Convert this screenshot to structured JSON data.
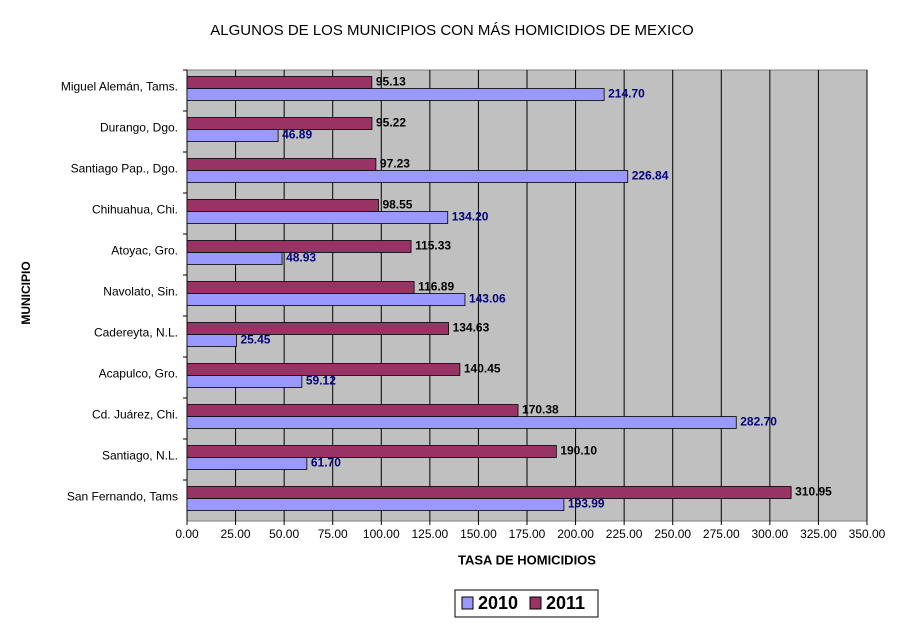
{
  "chart_data": {
    "type": "hbar",
    "title": "ALGUNOS DE LOS MUNICIPIOS CON MÁS HOMICIDIOS DE MEXICO",
    "x_label": "TASA DE HOMICIDIOS",
    "y_label": "MUNICIPIO",
    "categories": [
      "Miguel Alemán, Tams.",
      "Durango, Dgo.",
      "Santiago Pap., Dgo.",
      "Chihuahua, Chi.",
      "Atoyac, Gro.",
      "Navolato, Sin.",
      "Cadereyta, N.L.",
      "Acapulco, Gro.",
      "Cd. Juárez, Chi.",
      "Santiago, N.L.",
      "San Fernando, Tams"
    ],
    "series": [
      {
        "name": "2011",
        "color": "#993366",
        "label_color": "#000000",
        "values": [
          95.13,
          95.22,
          97.23,
          98.55,
          115.33,
          116.89,
          134.63,
          140.45,
          170.38,
          190.1,
          310.95
        ],
        "value_labels": [
          "95.13",
          "95.22",
          "97.23",
          "98.55",
          "115.33",
          "116.89",
          "134.63",
          "140.45",
          "170.38",
          "190.10",
          "310.95"
        ]
      },
      {
        "name": "2010",
        "color": "#9999ff",
        "label_color": "#000080",
        "values": [
          214.7,
          46.89,
          226.84,
          134.2,
          48.93,
          143.06,
          25.45,
          59.12,
          282.7,
          61.7,
          193.99
        ],
        "value_labels": [
          "214.70",
          "46.89",
          "226.84",
          "134.20",
          "48.93",
          "143.06",
          "25.45",
          "59.12",
          "282.70",
          "61.70",
          "193.99"
        ]
      }
    ],
    "legend_order": [
      1,
      0
    ],
    "xlim": [
      0,
      350
    ],
    "xticks": [
      {
        "value": 0,
        "label": "0.00"
      },
      {
        "value": 25,
        "label": "25.00"
      },
      {
        "value": 50,
        "label": "50.00"
      },
      {
        "value": 75,
        "label": "75.00"
      },
      {
        "value": 100,
        "label": "100.00"
      },
      {
        "value": 125,
        "label": "125.00"
      },
      {
        "value": 150,
        "label": "150.00"
      },
      {
        "value": 175,
        "label": "175.00"
      },
      {
        "value": 200,
        "label": "200.00"
      },
      {
        "value": 225,
        "label": "225.00"
      },
      {
        "value": 250,
        "label": "250.00"
      },
      {
        "value": 275,
        "label": "275.00"
      },
      {
        "value": 300,
        "label": "300.00"
      },
      {
        "value": 325,
        "label": "325.00"
      },
      {
        "value": 350,
        "label": "350.00"
      }
    ],
    "grid": true,
    "plot_background": "#c0c0c0",
    "legend": "bottom"
  }
}
